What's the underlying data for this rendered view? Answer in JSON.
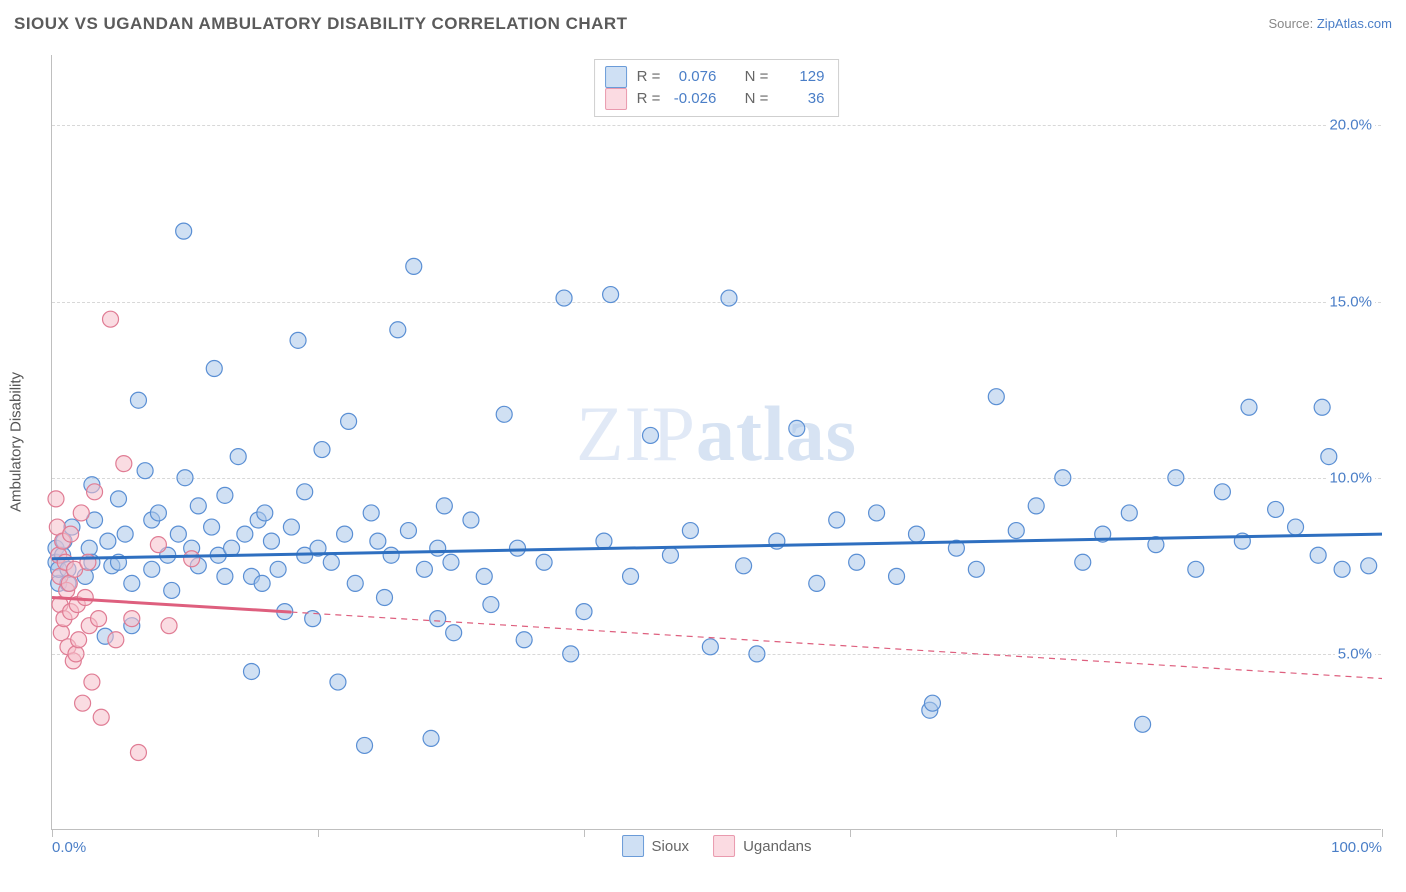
{
  "title": "SIOUX VS UGANDAN AMBULATORY DISABILITY CORRELATION CHART",
  "source_prefix": "Source: ",
  "source_link": "ZipAtlas.com",
  "y_axis_title": "Ambulatory Disability",
  "watermark_thin": "ZIP",
  "watermark_bold": "atlas",
  "chart": {
    "type": "scatter",
    "background_color": "#ffffff",
    "grid_color": "#d8d8d8",
    "grid_dash": "4,4",
    "axis_line_color": "#bfbfbf",
    "text_color": "#555555",
    "value_color": "#4a7ec7",
    "title_fontsize": 17,
    "label_fontsize": 15,
    "xlim": [
      0,
      100
    ],
    "ylim": [
      0,
      22
    ],
    "x_ticks": [
      0,
      20,
      40,
      60,
      80,
      100
    ],
    "x_tick_labels": {
      "0": "0.0%",
      "100": "100.0%"
    },
    "y_gridlines": [
      5,
      10,
      15,
      20
    ],
    "y_tick_labels": {
      "5": "5.0%",
      "10": "10.0%",
      "15": "15.0%",
      "20": "20.0%"
    },
    "marker_radius": 8,
    "marker_stroke_width": 1.2,
    "trend_solid_width": 3,
    "trend_dash_width": 1.2,
    "trend_dash_pattern": "6,5"
  },
  "series": [
    {
      "name": "Sioux",
      "fill_color": "#a9c6ea",
      "fill_opacity": 0.55,
      "stroke_color": "#5a8fd4",
      "swatch_fill": "#cfe0f4",
      "swatch_border": "#6a9bd8",
      "R": "0.076",
      "N": "129",
      "trend": {
        "x1": 0,
        "y1": 7.7,
        "x2": 100,
        "y2": 8.4,
        "solid_until_x": 100,
        "line_color": "#2e6fc0"
      },
      "points": [
        [
          0.3,
          8.0
        ],
        [
          0.3,
          7.6
        ],
        [
          0.5,
          7.0
        ],
        [
          0.5,
          7.4
        ],
        [
          0.8,
          7.8
        ],
        [
          0.9,
          8.2
        ],
        [
          1.2,
          7.0
        ],
        [
          1.2,
          7.4
        ],
        [
          1.5,
          8.6
        ],
        [
          2.5,
          7.2
        ],
        [
          2.8,
          8.0
        ],
        [
          3.0,
          7.6
        ],
        [
          3.0,
          9.8
        ],
        [
          3.2,
          8.8
        ],
        [
          4.0,
          5.5
        ],
        [
          4.2,
          8.2
        ],
        [
          4.5,
          7.5
        ],
        [
          5.0,
          9.4
        ],
        [
          5.0,
          7.6
        ],
        [
          5.5,
          8.4
        ],
        [
          6.0,
          5.8
        ],
        [
          6.0,
          7.0
        ],
        [
          6.5,
          12.2
        ],
        [
          7.0,
          10.2
        ],
        [
          7.5,
          8.8
        ],
        [
          7.5,
          7.4
        ],
        [
          8.0,
          9.0
        ],
        [
          8.7,
          7.8
        ],
        [
          9.0,
          6.8
        ],
        [
          9.5,
          8.4
        ],
        [
          9.9,
          17.0
        ],
        [
          10.0,
          10.0
        ],
        [
          10.5,
          8.0
        ],
        [
          11.0,
          9.2
        ],
        [
          11.0,
          7.5
        ],
        [
          12.0,
          8.6
        ],
        [
          12.2,
          13.1
        ],
        [
          12.5,
          7.8
        ],
        [
          13.0,
          9.5
        ],
        [
          13.0,
          7.2
        ],
        [
          13.5,
          8.0
        ],
        [
          14.0,
          10.6
        ],
        [
          14.5,
          8.4
        ],
        [
          15.0,
          7.2
        ],
        [
          15.0,
          4.5
        ],
        [
          15.5,
          8.8
        ],
        [
          15.8,
          7.0
        ],
        [
          16.0,
          9.0
        ],
        [
          16.5,
          8.2
        ],
        [
          17.0,
          7.4
        ],
        [
          17.5,
          6.2
        ],
        [
          18.0,
          8.6
        ],
        [
          18.5,
          13.9
        ],
        [
          19.0,
          7.8
        ],
        [
          19.0,
          9.6
        ],
        [
          19.6,
          6.0
        ],
        [
          20.0,
          8.0
        ],
        [
          20.3,
          10.8
        ],
        [
          21.0,
          7.6
        ],
        [
          21.5,
          4.2
        ],
        [
          22.0,
          8.4
        ],
        [
          22.3,
          11.6
        ],
        [
          22.8,
          7.0
        ],
        [
          23.5,
          2.4
        ],
        [
          24.0,
          9.0
        ],
        [
          24.5,
          8.2
        ],
        [
          25.0,
          6.6
        ],
        [
          25.5,
          7.8
        ],
        [
          26.0,
          14.2
        ],
        [
          26.8,
          8.5
        ],
        [
          27.2,
          16.0
        ],
        [
          28.0,
          7.4
        ],
        [
          28.5,
          2.6
        ],
        [
          29.0,
          6.0
        ],
        [
          29.0,
          8.0
        ],
        [
          29.5,
          9.2
        ],
        [
          30.0,
          7.6
        ],
        [
          30.2,
          5.6
        ],
        [
          31.5,
          8.8
        ],
        [
          32.5,
          7.2
        ],
        [
          33.0,
          6.4
        ],
        [
          34.0,
          11.8
        ],
        [
          35.0,
          8.0
        ],
        [
          35.5,
          5.4
        ],
        [
          37.0,
          7.6
        ],
        [
          38.5,
          15.1
        ],
        [
          39.0,
          5.0
        ],
        [
          40.0,
          6.2
        ],
        [
          41.5,
          8.2
        ],
        [
          42.0,
          15.2
        ],
        [
          43.5,
          7.2
        ],
        [
          45.0,
          11.2
        ],
        [
          46.5,
          7.8
        ],
        [
          48.0,
          8.5
        ],
        [
          49.5,
          5.2
        ],
        [
          50.9,
          15.1
        ],
        [
          52.0,
          7.5
        ],
        [
          53.0,
          5.0
        ],
        [
          54.5,
          8.2
        ],
        [
          56.0,
          11.4
        ],
        [
          57.5,
          7.0
        ],
        [
          59.0,
          8.8
        ],
        [
          60.5,
          7.6
        ],
        [
          62.0,
          9.0
        ],
        [
          63.5,
          7.2
        ],
        [
          65.0,
          8.4
        ],
        [
          66.0,
          3.4
        ],
        [
          66.2,
          3.6
        ],
        [
          68.0,
          8.0
        ],
        [
          69.5,
          7.4
        ],
        [
          71.0,
          12.3
        ],
        [
          72.5,
          8.5
        ],
        [
          74.0,
          9.2
        ],
        [
          76.0,
          10.0
        ],
        [
          77.5,
          7.6
        ],
        [
          79.0,
          8.4
        ],
        [
          81.0,
          9.0
        ],
        [
          82.0,
          3.0
        ],
        [
          83.0,
          8.1
        ],
        [
          84.5,
          10.0
        ],
        [
          86.0,
          7.4
        ],
        [
          88.0,
          9.6
        ],
        [
          89.5,
          8.2
        ],
        [
          90.0,
          12.0
        ],
        [
          92.0,
          9.1
        ],
        [
          93.5,
          8.6
        ],
        [
          95.5,
          12.0
        ],
        [
          96.0,
          10.6
        ],
        [
          97.0,
          7.4
        ],
        [
          99.0,
          7.5
        ],
        [
          95.2,
          7.8
        ]
      ]
    },
    {
      "name": "Ugandans",
      "fill_color": "#f6bfcb",
      "fill_opacity": 0.55,
      "stroke_color": "#e07c94",
      "swatch_fill": "#fbdbe2",
      "swatch_border": "#e99aae",
      "R": "-0.026",
      "N": "36",
      "trend": {
        "x1": 0,
        "y1": 6.6,
        "x2": 100,
        "y2": 4.3,
        "solid_until_x": 18,
        "line_color": "#de5f7e"
      },
      "points": [
        [
          0.3,
          9.4
        ],
        [
          0.4,
          8.6
        ],
        [
          0.5,
          7.8
        ],
        [
          0.6,
          6.4
        ],
        [
          0.6,
          7.2
        ],
        [
          0.7,
          5.6
        ],
        [
          0.8,
          8.2
        ],
        [
          0.9,
          6.0
        ],
        [
          1.0,
          7.6
        ],
        [
          1.1,
          6.8
        ],
        [
          1.2,
          5.2
        ],
        [
          1.3,
          7.0
        ],
        [
          1.4,
          8.4
        ],
        [
          1.4,
          6.2
        ],
        [
          1.6,
          4.8
        ],
        [
          1.7,
          7.4
        ],
        [
          1.8,
          5.0
        ],
        [
          1.9,
          6.4
        ],
        [
          2.0,
          5.4
        ],
        [
          2.2,
          9.0
        ],
        [
          2.3,
          3.6
        ],
        [
          2.5,
          6.6
        ],
        [
          2.7,
          7.6
        ],
        [
          2.8,
          5.8
        ],
        [
          3.0,
          4.2
        ],
        [
          3.2,
          9.6
        ],
        [
          3.5,
          6.0
        ],
        [
          3.7,
          3.2
        ],
        [
          4.4,
          14.5
        ],
        [
          4.8,
          5.4
        ],
        [
          5.4,
          10.4
        ],
        [
          6.0,
          6.0
        ],
        [
          6.5,
          2.2
        ],
        [
          8.0,
          8.1
        ],
        [
          8.8,
          5.8
        ],
        [
          10.5,
          7.7
        ]
      ]
    }
  ],
  "stats_legend_labels": {
    "R": "R =",
    "N": "N ="
  },
  "series_legend_order": [
    "Sioux",
    "Ugandans"
  ]
}
